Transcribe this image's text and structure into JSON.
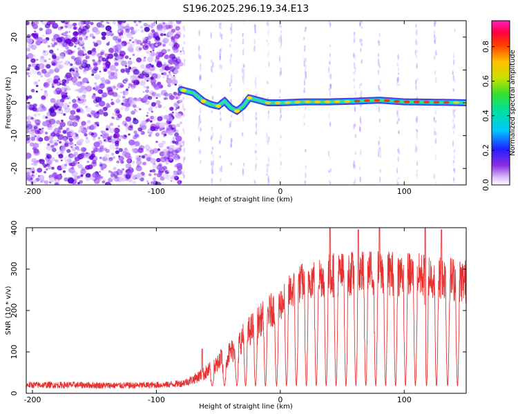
{
  "title": "S196.2025.296.19.34.E13",
  "chart_data": [
    {
      "type": "heatmap",
      "title": "",
      "xlabel": "Height of straight line (km)",
      "ylabel": "Frequency (Hz)",
      "xlim": [
        -205,
        150
      ],
      "ylim": [
        -25,
        25
      ],
      "xticks": [
        -200,
        -100,
        0,
        100
      ],
      "xtick_labels": [
        "-200",
        "-100",
        "0",
        "100"
      ],
      "yticks": [
        -20,
        -10,
        0,
        10,
        20
      ],
      "ytick_labels": [
        "-20",
        "-10",
        "0",
        "10",
        "20"
      ],
      "description_of_ridge": "scattered noise for heights below about -80 km; coherent ridge near 0 Hz above",
      "ridge": {
        "x": [
          -80,
          -70,
          -62,
          -56,
          -50,
          -45,
          -40,
          -35,
          -30,
          -25,
          -20,
          -10,
          0,
          20,
          40,
          60,
          80,
          100,
          120,
          140,
          150
        ],
        "y": [
          4.0,
          3.0,
          0.5,
          -0.5,
          -1.0,
          0.5,
          -1.5,
          -2.5,
          -1.0,
          1.5,
          1.0,
          0.0,
          0.0,
          0.3,
          0.3,
          0.5,
          0.8,
          0.3,
          0.2,
          0.1,
          0.0
        ]
      },
      "colorbar": {
        "label": "Normalized spectral amplitude",
        "range": [
          0.0,
          0.95
        ],
        "ticks": [
          0.0,
          0.2,
          0.4,
          0.6,
          0.8
        ],
        "tick_labels": [
          "0.0",
          "0.2",
          "0.4",
          "0.6",
          "0.8"
        ]
      }
    },
    {
      "type": "line",
      "title": "",
      "xlabel": "Height of straight line (km)",
      "ylabel": "SNR (10 * v/v)",
      "xlim": [
        -205,
        150
      ],
      "ylim": [
        0,
        400
      ],
      "xticks": [
        -200,
        -100,
        0,
        100
      ],
      "xtick_labels": [
        "-200",
        "-100",
        "0",
        "100"
      ],
      "yticks": [
        0,
        100,
        200,
        300,
        400
      ],
      "ytick_labels": [
        "0",
        "100",
        "200",
        "300",
        "400"
      ],
      "series": [
        {
          "name": "SNR",
          "color": "#e83030",
          "x": [
            -205,
            -180,
            -160,
            -140,
            -120,
            -100,
            -90,
            -80,
            -75,
            -70,
            -65,
            -60,
            -55,
            -50,
            -45,
            -40,
            -35,
            -30,
            -25,
            -20,
            -15,
            -10,
            -5,
            0,
            5,
            10,
            15,
            20,
            25,
            30,
            40,
            50,
            60,
            70,
            80,
            90,
            100,
            110,
            120,
            130,
            140,
            150
          ],
          "baseline": [
            20,
            20,
            20,
            19,
            19,
            20,
            21,
            24,
            28,
            34,
            42,
            50,
            60,
            70,
            85,
            100,
            115,
            135,
            150,
            165,
            180,
            195,
            205,
            215,
            235,
            250,
            262,
            272,
            278,
            282,
            285,
            288,
            290,
            290,
            292,
            290,
            288,
            285,
            285,
            280,
            275,
            270
          ],
          "jitter": [
            8,
            8,
            8,
            8,
            8,
            8,
            8,
            9,
            10,
            12,
            15,
            18,
            22,
            25,
            28,
            30,
            32,
            35,
            38,
            40,
            40,
            42,
            42,
            42,
            45,
            45,
            48,
            50,
            50,
            52,
            55,
            55,
            55,
            55,
            55,
            55,
            55,
            55,
            55,
            55,
            55,
            55
          ],
          "dropouts_x": [
            -55,
            -45,
            -35,
            -28,
            -20,
            -12,
            -3,
            5,
            13,
            21,
            29,
            37,
            45,
            53,
            61,
            69,
            77,
            85,
            93,
            101,
            109,
            118,
            126,
            135,
            143
          ],
          "dropout_level": 18,
          "peaks_x": [
            -63,
            -48,
            40,
            63,
            80,
            117,
            130
          ],
          "peaks_y": [
            107,
            105,
            400,
            395,
            400,
            400,
            395
          ]
        }
      ]
    }
  ]
}
